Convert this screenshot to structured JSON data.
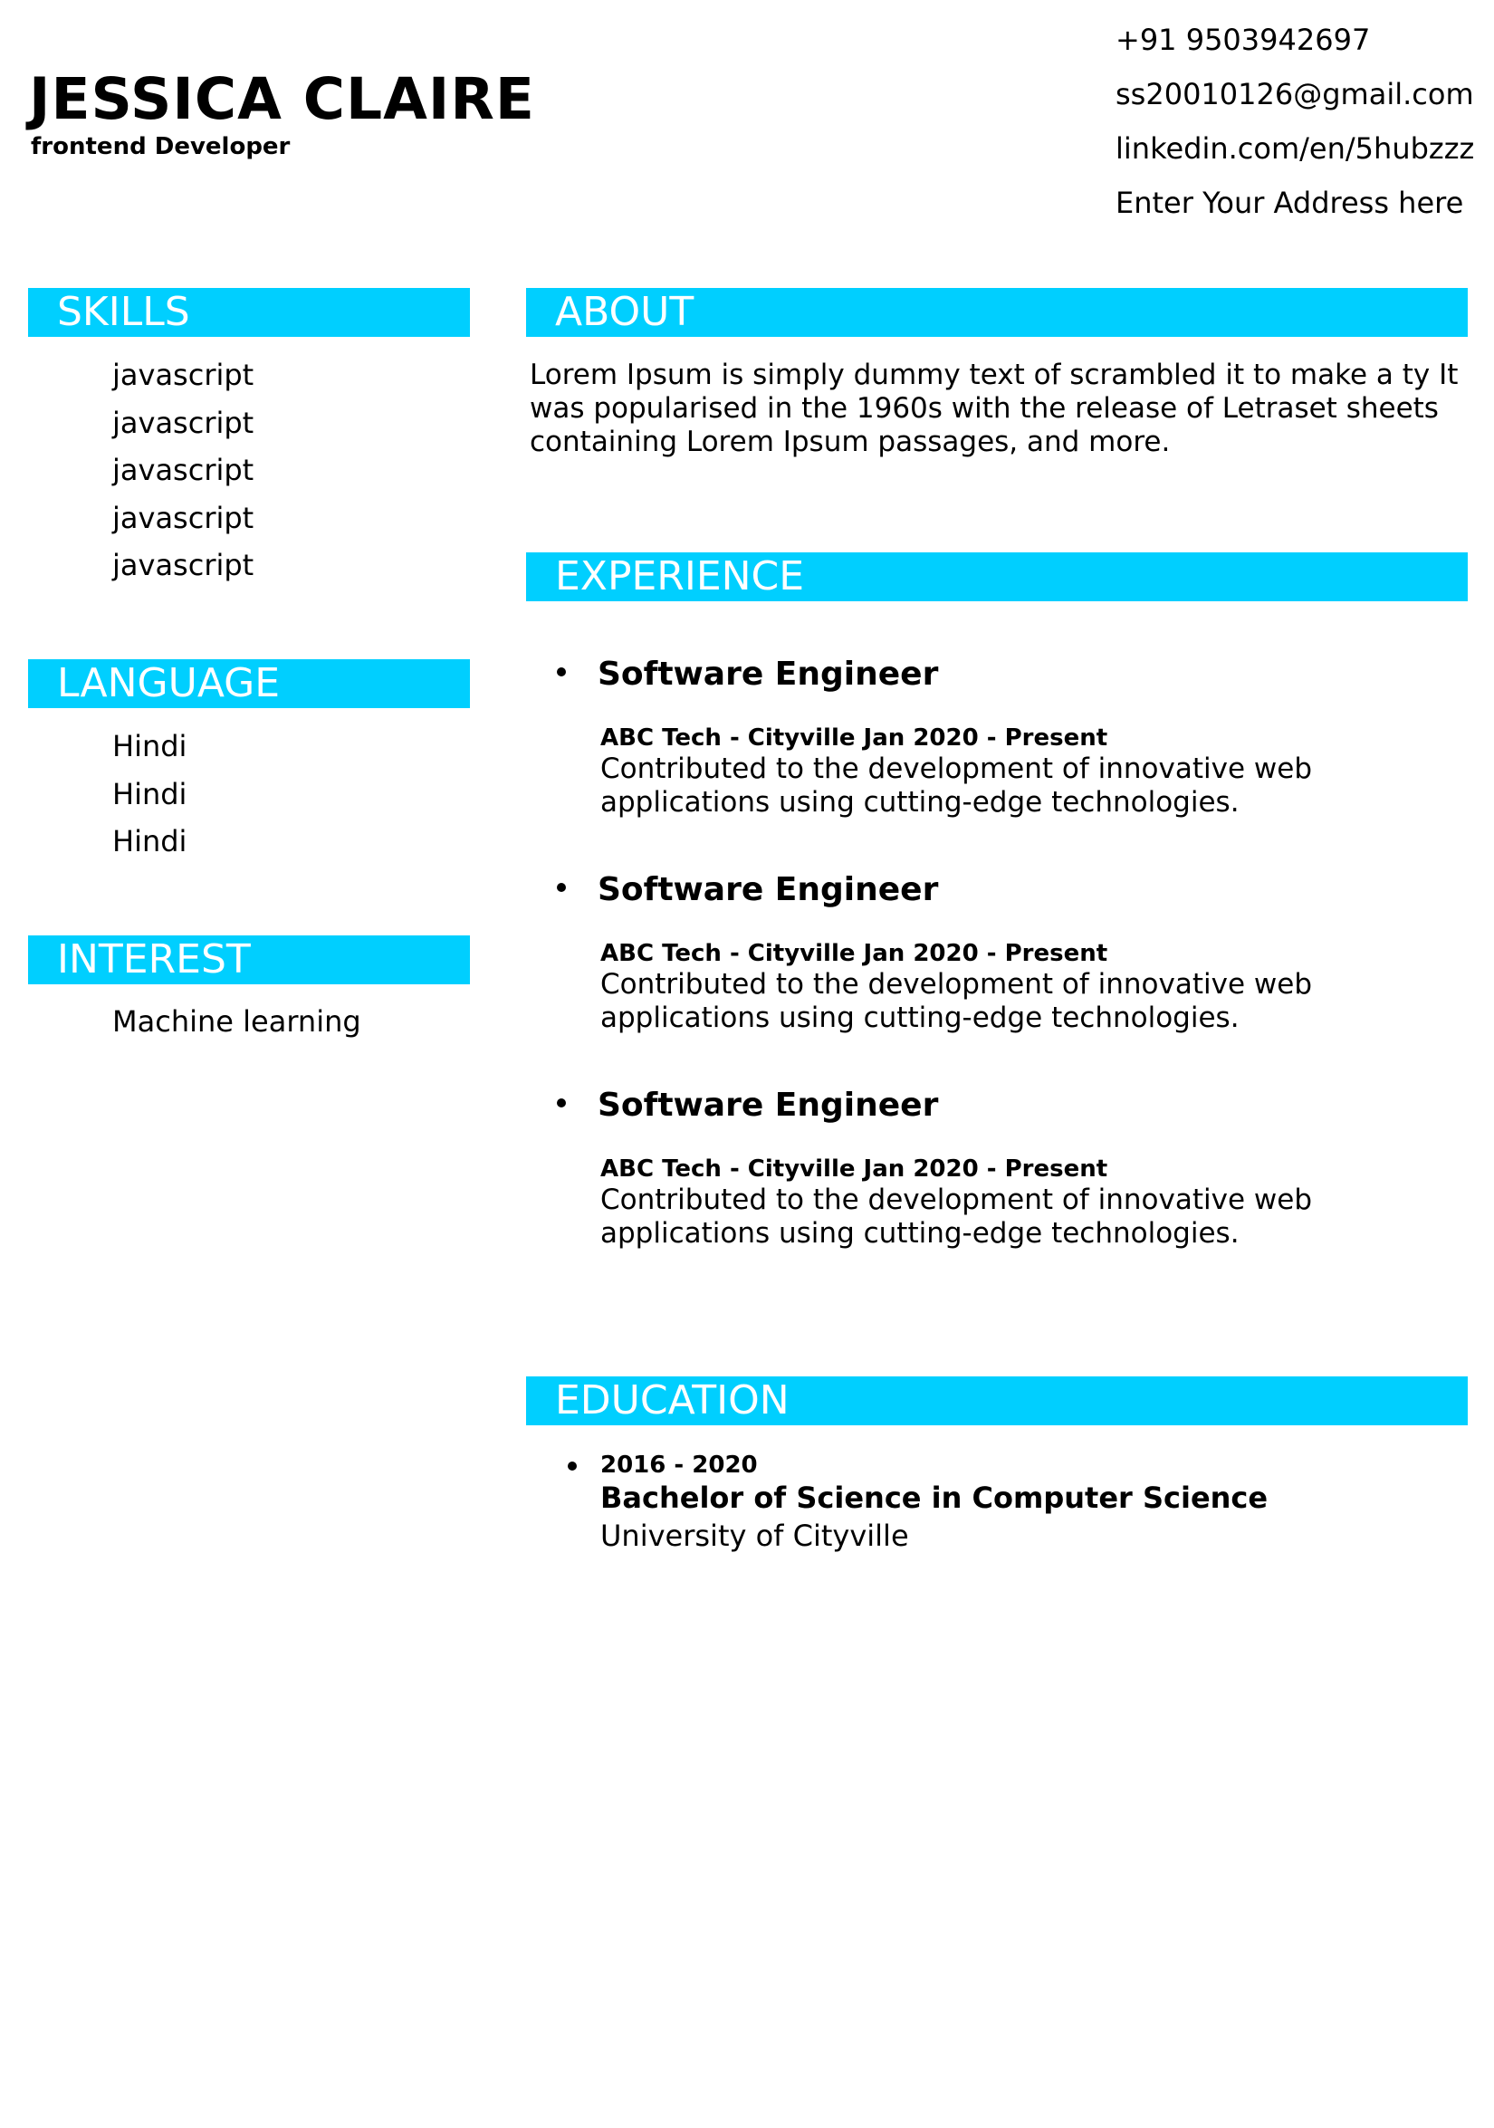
{
  "header": {
    "name": "JESSICA CLAIRE",
    "role": "frontend Developer"
  },
  "contact": {
    "phone": "+91 9503942697",
    "email": "ss20010126@gmail.com",
    "linkedin": "linkedin.com/en/5hubzzz",
    "address": "Enter Your Address here"
  },
  "sections": {
    "skills": {
      "title": "SKILLS",
      "items": [
        "javascript",
        "javascript",
        "javascript",
        "javascript",
        "javascript"
      ]
    },
    "language": {
      "title": "LANGUAGE",
      "items": [
        "Hindi",
        "Hindi",
        "Hindi"
      ]
    },
    "interest": {
      "title": "INTEREST",
      "items": [
        "Machine learning"
      ]
    },
    "about": {
      "title": "ABOUT",
      "text": "Lorem Ipsum is simply dummy text of scrambled it to make a ty It was popularised in the 1960s with the release of Letraset sheets containing Lorem Ipsum passages, and more."
    },
    "experience": {
      "title": "EXPERIENCE",
      "items": [
        {
          "title": "Software Engineer",
          "meta": "ABC Tech - Cityville Jan 2020 - Present",
          "description": "Contributed to the development of innovative web applications using cutting-edge technologies."
        },
        {
          "title": "Software Engineer",
          "meta": "ABC Tech - Cityville Jan 2020 - Present",
          "description": "Contributed to the development of innovative web applications using cutting-edge technologies."
        },
        {
          "title": "Software Engineer",
          "meta": "ABC Tech - Cityville Jan 2020 - Present",
          "description": "Contributed to the development of innovative web applications using cutting-edge technologies."
        }
      ]
    },
    "education": {
      "title": "EDUCATION",
      "items": [
        {
          "years": "2016 - 2020",
          "degree": "Bachelor of Science in Computer Science",
          "school": "University of Cityville"
        }
      ]
    }
  },
  "colors": {
    "accent": "#00cfff",
    "text": "#000000",
    "bar_text": "#ffffff"
  }
}
